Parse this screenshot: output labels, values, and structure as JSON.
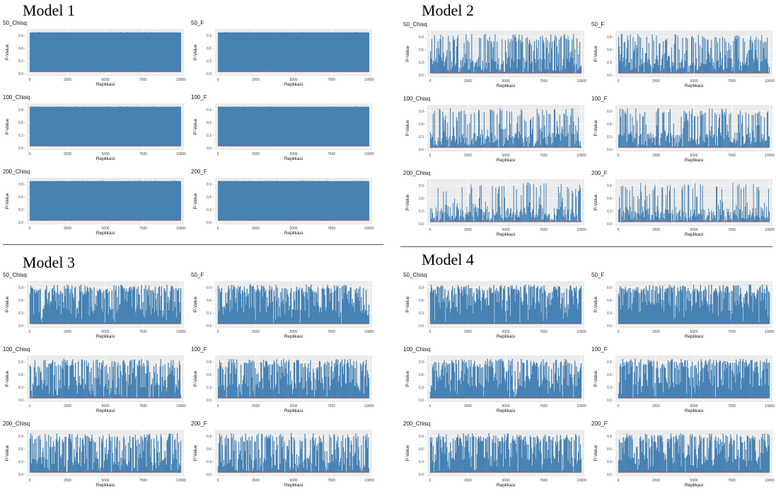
{
  "colors": {
    "bar": "#4682b4",
    "panel_bg": "#ebebeb",
    "grid": "#ffffff",
    "threshold": "#c0392b"
  },
  "models": [
    {
      "title": "Model 1",
      "panels": [
        {
          "name": "50_Chisq",
          "ylabel": "P-Value",
          "xlabel": "Replikasi"
        },
        {
          "name": "50_F",
          "ylabel": "P-Value",
          "xlabel": "Replikasi"
        },
        {
          "name": "100_Chisq",
          "ylabel": "P-Value",
          "xlabel": "Replikasi"
        },
        {
          "name": "100_F",
          "ylabel": "P-Value",
          "xlabel": "Replikasi"
        },
        {
          "name": "200_Chisq",
          "ylabel": "P-Value",
          "xlabel": "Replikasi"
        },
        {
          "name": "200_F",
          "ylabel": "P-Value",
          "xlabel": "Replikasi"
        }
      ]
    },
    {
      "title": "Model 2",
      "panels": [
        {
          "name": "50_Chisq",
          "ylabel": "P-Value",
          "xlabel": "Replikasi"
        },
        {
          "name": "50_F",
          "ylabel": "P-Value",
          "xlabel": "Replikasi"
        },
        {
          "name": "100_Chisq",
          "ylabel": "P-Value",
          "xlabel": "Replikasi"
        },
        {
          "name": "100_F",
          "ylabel": "P-Value",
          "xlabel": "Replikasi"
        },
        {
          "name": "200_Chisq",
          "ylabel": "P-Value",
          "xlabel": "Replikasi"
        },
        {
          "name": "200_F",
          "ylabel": "P-Value",
          "xlabel": "Replikasi"
        }
      ]
    },
    {
      "title": "Model 3",
      "panels": [
        {
          "name": "50_Chisq",
          "ylabel": "P-Value",
          "xlabel": "Replikasi"
        },
        {
          "name": "50_F",
          "ylabel": "P-Value",
          "xlabel": "Replikasi"
        },
        {
          "name": "100_Chisq",
          "ylabel": "P-Value",
          "xlabel": "Replikasi"
        },
        {
          "name": "100_F",
          "ylabel": "P-Value",
          "xlabel": "Replikasi"
        },
        {
          "name": "200_Chisq",
          "ylabel": "P-Value",
          "xlabel": "Replikasi"
        },
        {
          "name": "200_F",
          "ylabel": "P-Value",
          "xlabel": "Replikasi"
        }
      ]
    },
    {
      "title": "Model 4",
      "panels": [
        {
          "name": "50_Chisq",
          "ylabel": "P-Value",
          "xlabel": "Replikasi"
        },
        {
          "name": "50_F",
          "ylabel": "P-Value",
          "xlabel": "Replikasi"
        },
        {
          "name": "100_Chisq",
          "ylabel": "P-Value",
          "xlabel": "Replikasi"
        },
        {
          "name": "100_F",
          "ylabel": "P-Value",
          "xlabel": "Replikasi"
        },
        {
          "name": "200_Chisq",
          "ylabel": "P-Value",
          "xlabel": "Replikasi"
        },
        {
          "name": "200_F",
          "ylabel": "P-Value",
          "xlabel": "Replikasi"
        }
      ]
    }
  ],
  "chart_data": {
    "type": "bar",
    "xlabel": "Replikasi",
    "ylabel": "P-Value",
    "x_ticks": [
      0,
      2500,
      5000,
      7500,
      10000
    ],
    "x_tick_labels": [
      "0",
      "2500",
      "5000",
      "7500",
      "10000"
    ],
    "y_ticks": [
      0.0,
      0.3,
      0.6,
      0.9
    ],
    "y_tick_labels": [
      "0.0 -",
      "0.3 -",
      "0.6 -",
      "0.9 -"
    ],
    "xlim": [
      0,
      10000
    ],
    "ylim": [
      0,
      1
    ],
    "threshold": 0.05,
    "panel_density": {
      "Model 1": [
        1.0,
        1.0,
        1.0,
        1.0,
        1.0,
        1.0
      ],
      "Model 2": [
        0.45,
        0.45,
        0.35,
        0.35,
        0.22,
        0.22
      ],
      "Model 3": [
        0.8,
        0.8,
        0.65,
        0.65,
        0.55,
        0.55
      ],
      "Model 4": [
        0.85,
        0.85,
        0.75,
        0.75,
        0.7,
        0.7
      ]
    }
  }
}
